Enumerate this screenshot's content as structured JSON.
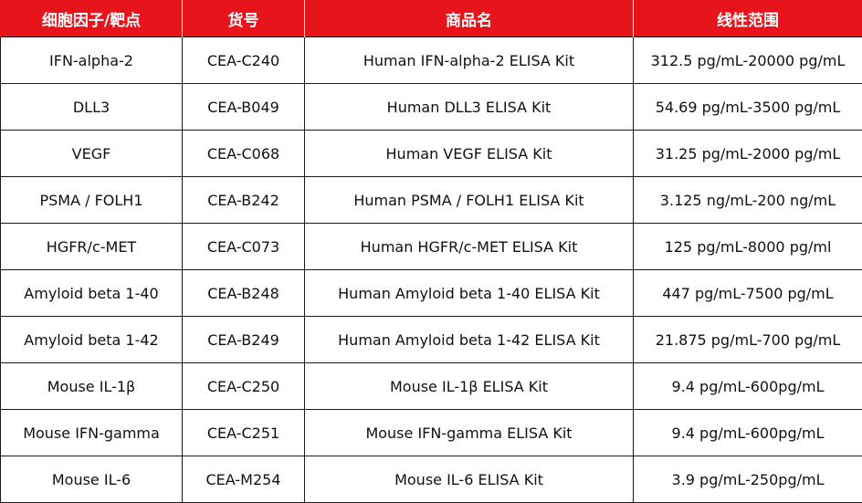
{
  "headers": [
    "细胞因子/靶点",
    "货号",
    "商品名",
    "线性范围"
  ],
  "rows": [
    [
      "IFN-alpha-2",
      "CEA-C240",
      "Human IFN-alpha-2 ELISA Kit",
      "312.5 pg/mL-20000 pg/mL"
    ],
    [
      "DLL3",
      "CEA-B049",
      "Human DLL3 ELISA Kit",
      "54.69 pg/mL-3500 pg/mL"
    ],
    [
      "VEGF",
      "CEA-C068",
      "Human VEGF ELISA Kit",
      "31.25 pg/mL-2000 pg/mL"
    ],
    [
      "PSMA / FOLH1",
      "CEA-B242",
      "Human PSMA / FOLH1 ELISA Kit",
      "3.125 ng/mL-200 ng/mL"
    ],
    [
      "HGFR/c-MET",
      "CEA-C073",
      "Human HGFR/c-MET ELISA Kit",
      "125 pg/mL-8000 pg/ml"
    ],
    [
      "Amyloid beta 1-40",
      "CEA-B248",
      "Human Amyloid beta 1-40 ELISA Kit",
      "447 pg/mL-7500 pg/mL"
    ],
    [
      "Amyloid beta 1-42",
      "CEA-B249",
      "Human Amyloid beta 1-42 ELISA Kit",
      "21.875 pg/mL-700 pg/mL"
    ],
    [
      "Mouse IL-1β",
      "CEA-C250",
      "Mouse IL-1β ELISA Kit",
      "9.4 pg/mL-600pg/mL"
    ],
    [
      "Mouse IFN-gamma",
      "CEA-C251",
      "Mouse IFN-gamma ELISA Kit",
      "9.4 pg/mL-600pg/mL"
    ],
    [
      "Mouse IL-6",
      "CEA-M254",
      "Mouse IL-6 ELISA Kit",
      "3.9 pg/mL-250pg/mL"
    ]
  ],
  "colors": {
    "header_bg": "#e8141c",
    "header_text": "#ffffff",
    "border": "#1a1a1a"
  }
}
